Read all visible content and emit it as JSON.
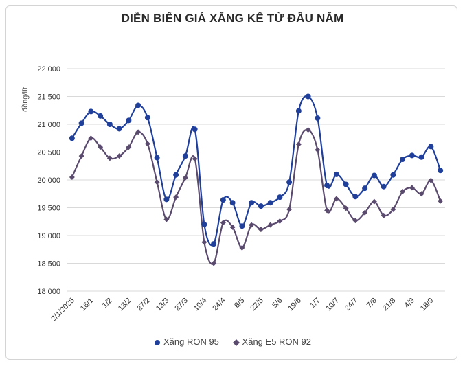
{
  "chart_data": {
    "type": "line",
    "title": "DIỄN BIẾN GIÁ XĂNG KỂ TỪ ĐẦU NĂM",
    "ylabel": "đồng/lít",
    "xlabel": "",
    "ylim": [
      18000,
      22000
    ],
    "yticks": [
      18000,
      18500,
      19000,
      19500,
      20000,
      20500,
      21000,
      21500,
      22000
    ],
    "ytick_labels": [
      "18 000",
      "18 500",
      "19 000",
      "19 500",
      "20 000",
      "20 500",
      "21 000",
      "21 500",
      "22 000"
    ],
    "x_tick_labels": [
      {
        "i": 0,
        "label": "2/1/2025"
      },
      {
        "i": 2,
        "label": "16/1"
      },
      {
        "i": 4,
        "label": "1/2"
      },
      {
        "i": 6,
        "label": "13/2"
      },
      {
        "i": 8,
        "label": "27/2"
      },
      {
        "i": 10,
        "label": "13/3"
      },
      {
        "i": 12,
        "label": "27/3"
      },
      {
        "i": 14,
        "label": "10/4"
      },
      {
        "i": 16,
        "label": "24/4"
      },
      {
        "i": 18,
        "label": "8/5"
      },
      {
        "i": 20,
        "label": "22/5"
      },
      {
        "i": 22,
        "label": "5/6"
      },
      {
        "i": 24,
        "label": "19/6"
      },
      {
        "i": 26,
        "label": "1/7"
      },
      {
        "i": 28,
        "label": "10/7"
      },
      {
        "i": 30,
        "label": "24/7"
      },
      {
        "i": 32,
        "label": "7/8"
      },
      {
        "i": 34,
        "label": "21/8"
      },
      {
        "i": 36,
        "label": "4/9"
      },
      {
        "i": 38,
        "label": "18/9"
      }
    ],
    "point_count": 40,
    "series": [
      {
        "name": "Xăng RON 95",
        "color": "#1f3f9a",
        "marker": "circle",
        "values": [
          20750,
          21020,
          21230,
          21150,
          21000,
          20920,
          21070,
          21340,
          21120,
          20400,
          19650,
          20090,
          20430,
          20910,
          19200,
          18850,
          19640,
          19590,
          19170,
          19590,
          19530,
          19590,
          19690,
          19960,
          21240,
          21500,
          21110,
          19900,
          20100,
          19920,
          19700,
          19850,
          20080,
          19880,
          20090,
          20370,
          20440,
          20410,
          20600,
          20170
        ]
      },
      {
        "name": "Xăng E5 RON 92",
        "color": "#5a4a6e",
        "marker": "diamond",
        "values": [
          20050,
          20430,
          20750,
          20590,
          20390,
          20430,
          20590,
          20860,
          20650,
          19960,
          19290,
          19690,
          20040,
          20380,
          18880,
          18500,
          19230,
          19150,
          18780,
          19190,
          19110,
          19190,
          19260,
          19470,
          20640,
          20900,
          20540,
          19450,
          19660,
          19490,
          19270,
          19410,
          19610,
          19360,
          19470,
          19790,
          19860,
          19750,
          19990,
          19620
        ]
      }
    ],
    "grid": "horizontal",
    "legend_position": "bottom"
  }
}
